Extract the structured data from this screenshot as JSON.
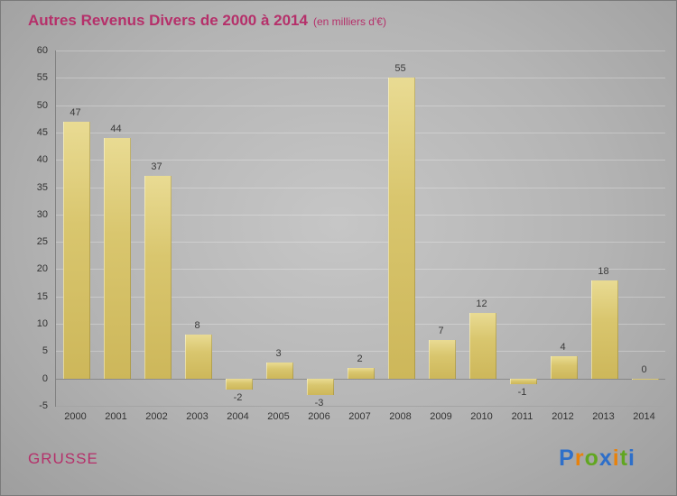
{
  "header": {
    "title": "Autres Revenus Divers de 2000 à 2014",
    "subtitle": "(en milliers d'€)"
  },
  "footer": {
    "company": "GRUSSE",
    "logo_letters": [
      {
        "ch": "P",
        "color": "#2e6fc9"
      },
      {
        "ch": "r",
        "color": "#e8820c"
      },
      {
        "ch": "o",
        "color": "#61a621"
      },
      {
        "ch": "x",
        "color": "#2e6fc9"
      },
      {
        "ch": "i",
        "color": "#e8820c"
      },
      {
        "ch": "t",
        "color": "#61a621"
      },
      {
        "ch": "i",
        "color": "#2e6fc9"
      }
    ]
  },
  "chart_data": {
    "type": "bar",
    "title": "Autres Revenus Divers de 2000 à 2014",
    "subtitle": "(en milliers d'€)",
    "categories": [
      "2000",
      "2001",
      "2002",
      "2003",
      "2004",
      "2005",
      "2006",
      "2007",
      "2008",
      "2009",
      "2010",
      "2011",
      "2012",
      "2013",
      "2014"
    ],
    "values": [
      47,
      44,
      37,
      8,
      -2,
      3,
      -3,
      2,
      55,
      7,
      12,
      -1,
      4,
      18,
      0
    ],
    "xlabel": "",
    "ylabel": "",
    "ylim": [
      -5,
      60
    ],
    "ytick_step": 5,
    "grid": true,
    "legend": "none",
    "bar_color": "#d9c66e",
    "accent_color": "#b5306a"
  }
}
